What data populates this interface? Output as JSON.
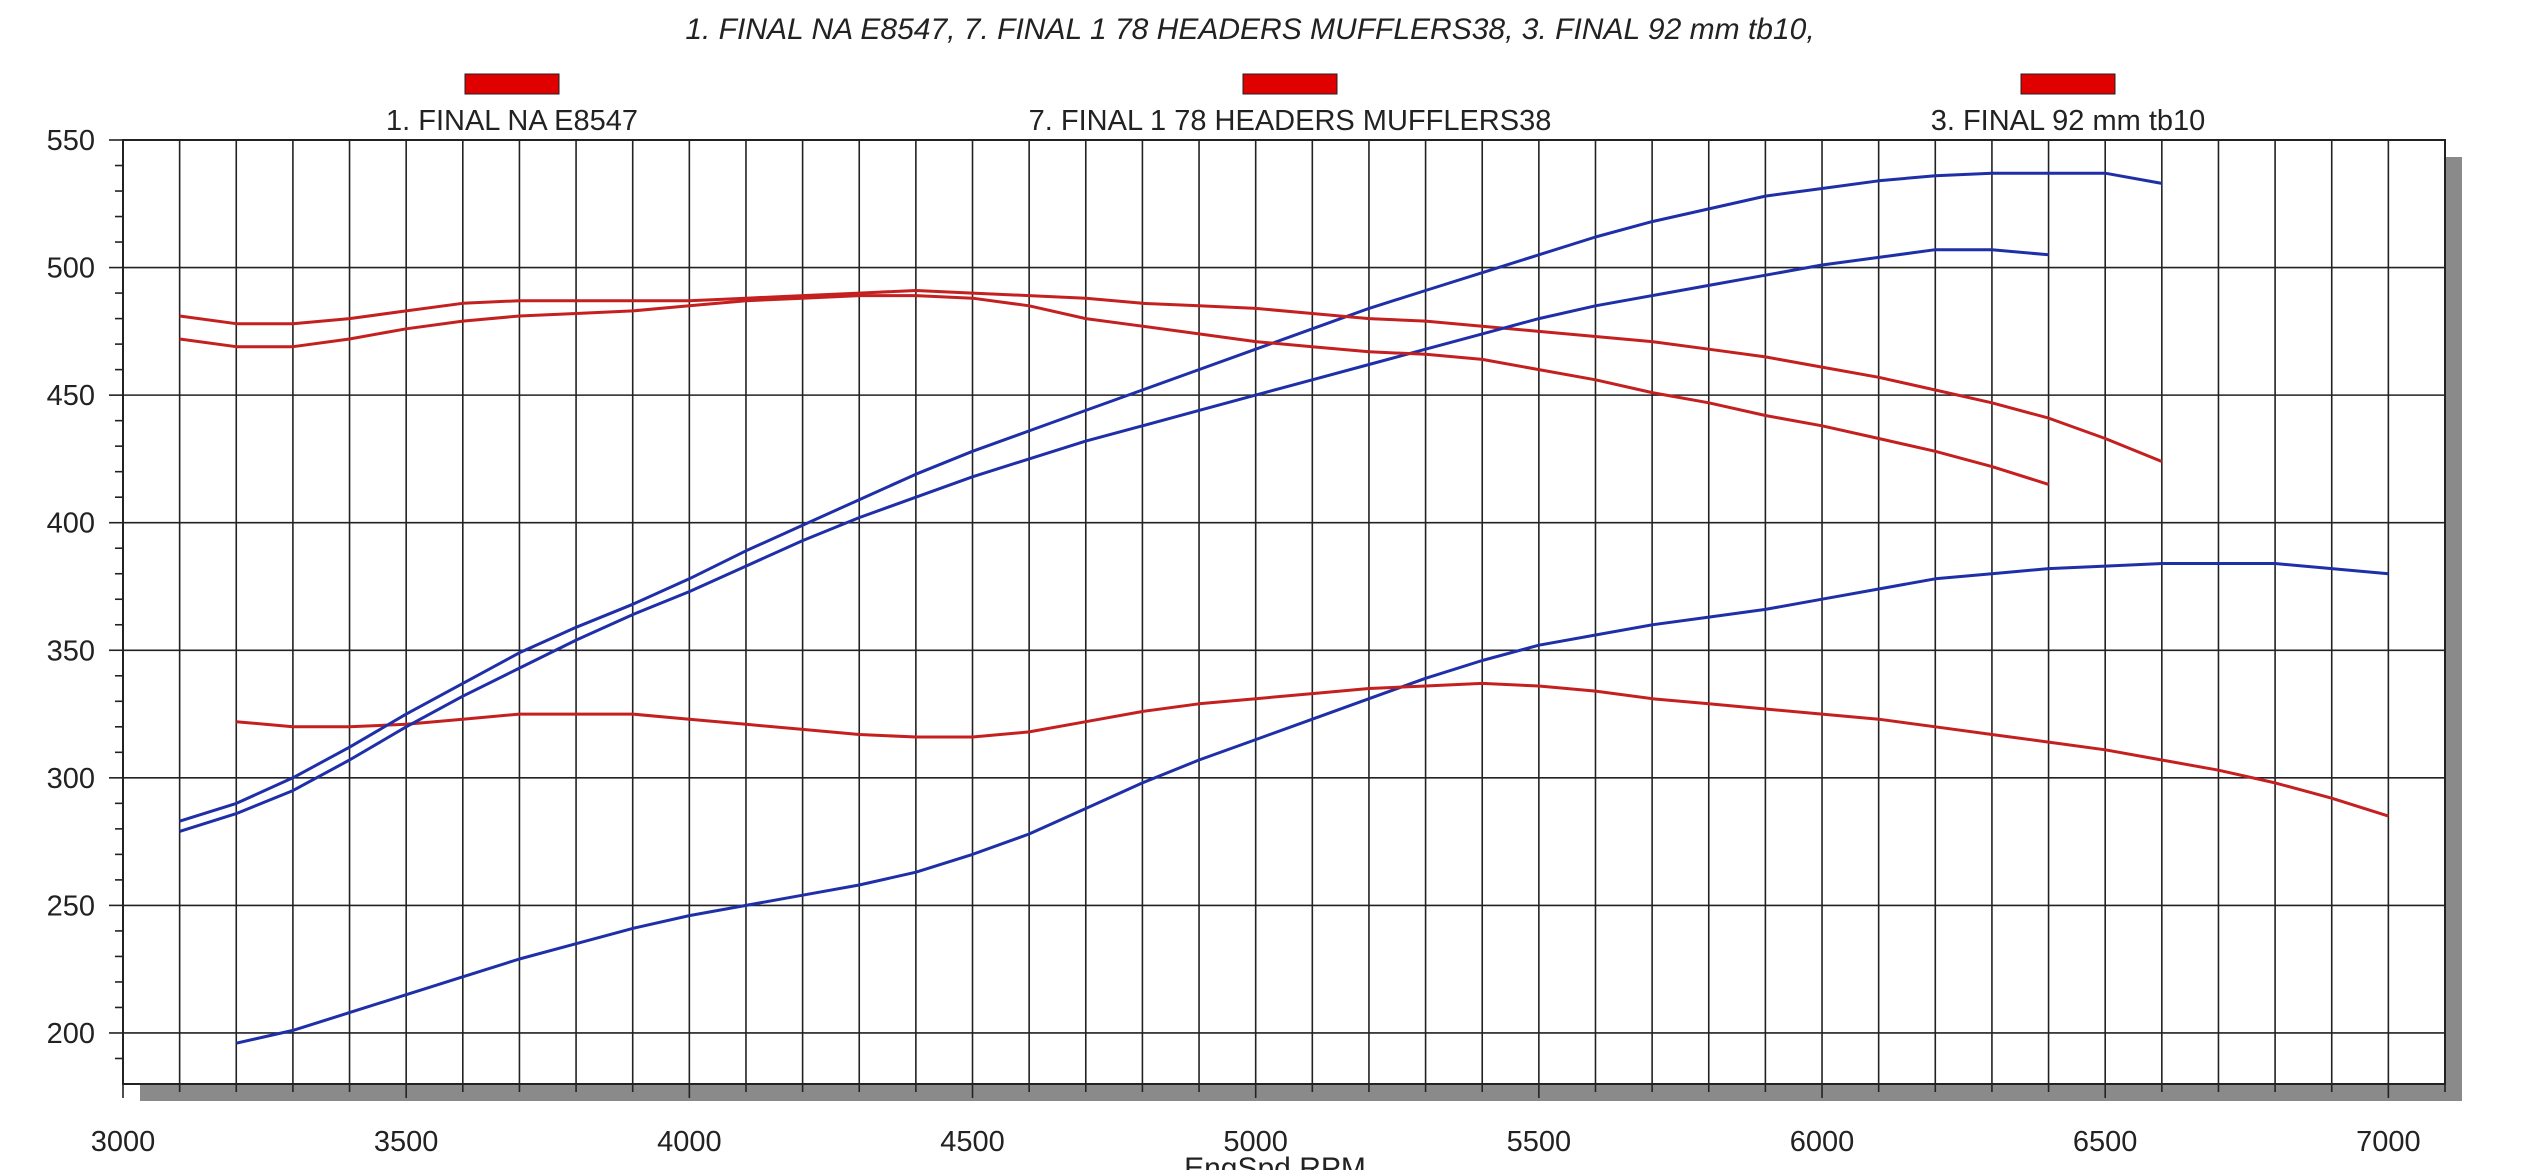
{
  "chart_data": {
    "type": "line",
    "title": "1. FINAL NA E8547, 7. FINAL 1 78 HEADERS MUFFLERS38, 3. FINAL 92 mm tb10,",
    "xlabel": "EngSpd RPM",
    "ylabel": "",
    "xlim": [
      3000,
      7100
    ],
    "ylim": [
      180,
      550
    ],
    "x_ticks": [
      3000,
      3500,
      4000,
      4500,
      5000,
      5500,
      6000,
      6500,
      7000
    ],
    "y_ticks": [
      200,
      250,
      300,
      350,
      400,
      450,
      500,
      550
    ],
    "grid": true,
    "legend_position": "top",
    "legend": [
      {
        "label": "1. FINAL NA E8547",
        "color": "#e00000"
      },
      {
        "label": "7. FINAL 1 78 HEADERS MUFFLERS38",
        "color": "#e00000"
      },
      {
        "label": "3. FINAL 92 mm tb10",
        "color": "#e00000"
      }
    ],
    "series": [
      {
        "color": "#1f2fa8",
        "x": [
          3200,
          3300,
          3400,
          3500,
          3600,
          3700,
          3800,
          3900,
          4000,
          4100,
          4200,
          4300,
          4400,
          4500,
          4600,
          4700,
          4800,
          4900,
          5000,
          5100,
          5200,
          5300,
          5400,
          5500,
          5600,
          5700,
          5800,
          5900,
          6000,
          6100,
          6200,
          6300,
          6400,
          6500,
          6600,
          6700,
          6800,
          6900,
          7000
        ],
        "y": [
          196,
          201,
          208,
          215,
          222,
          229,
          235,
          241,
          246,
          250,
          254,
          258,
          263,
          270,
          278,
          288,
          298,
          307,
          315,
          323,
          331,
          339,
          346,
          352,
          356,
          360,
          363,
          366,
          370,
          374,
          378,
          380,
          382,
          383,
          384,
          384,
          384,
          382,
          380
        ]
      },
      {
        "color": "#c42020",
        "x": [
          3200,
          3300,
          3400,
          3500,
          3600,
          3700,
          3800,
          3900,
          4000,
          4100,
          4200,
          4300,
          4400,
          4500,
          4600,
          4700,
          4800,
          4900,
          5000,
          5100,
          5200,
          5300,
          5400,
          5500,
          5600,
          5700,
          5800,
          5900,
          6000,
          6100,
          6200,
          6300,
          6400,
          6500,
          6600,
          6700,
          6800,
          6900,
          7000
        ],
        "y": [
          322,
          320,
          320,
          321,
          323,
          325,
          325,
          325,
          323,
          321,
          319,
          317,
          316,
          316,
          318,
          322,
          326,
          329,
          331,
          333,
          335,
          336,
          337,
          336,
          334,
          331,
          329,
          327,
          325,
          323,
          320,
          317,
          314,
          311,
          307,
          303,
          298,
          292,
          285
        ]
      },
      {
        "color": "#1f2fa8",
        "x": [
          3100,
          3200,
          3300,
          3400,
          3500,
          3600,
          3700,
          3800,
          3900,
          4000,
          4100,
          4200,
          4300,
          4400,
          4500,
          4600,
          4700,
          4800,
          4900,
          5000,
          5100,
          5200,
          5300,
          5400,
          5500,
          5600,
          5700,
          5800,
          5900,
          6000,
          6100,
          6200,
          6300,
          6400,
          6500,
          6600
        ],
        "y": [
          283,
          290,
          300,
          312,
          325,
          337,
          349,
          359,
          368,
          378,
          389,
          399,
          409,
          419,
          428,
          436,
          444,
          452,
          460,
          468,
          476,
          484,
          491,
          498,
          505,
          512,
          518,
          523,
          528,
          531,
          534,
          536,
          537,
          537,
          537,
          533
        ]
      },
      {
        "color": "#c42020",
        "x": [
          3100,
          3200,
          3300,
          3400,
          3500,
          3600,
          3700,
          3800,
          3900,
          4000,
          4100,
          4200,
          4300,
          4400,
          4500,
          4600,
          4700,
          4800,
          4900,
          5000,
          5100,
          5200,
          5300,
          5400,
          5500,
          5600,
          5700,
          5800,
          5900,
          6000,
          6100,
          6200,
          6300,
          6400,
          6500,
          6600
        ],
        "y": [
          481,
          478,
          478,
          480,
          483,
          486,
          487,
          487,
          487,
          487,
          488,
          489,
          490,
          491,
          490,
          489,
          488,
          486,
          485,
          484,
          482,
          480,
          479,
          477,
          475,
          473,
          471,
          468,
          465,
          461,
          457,
          452,
          447,
          441,
          433,
          424
        ]
      },
      {
        "color": "#1f2fa8",
        "x": [
          3100,
          3200,
          3300,
          3400,
          3500,
          3600,
          3700,
          3800,
          3900,
          4000,
          4100,
          4200,
          4300,
          4400,
          4500,
          4600,
          4700,
          4800,
          4900,
          5000,
          5100,
          5200,
          5300,
          5400,
          5500,
          5600,
          5700,
          5800,
          5900,
          6000,
          6100,
          6200,
          6300,
          6400
        ],
        "y": [
          279,
          286,
          295,
          307,
          320,
          332,
          343,
          354,
          364,
          373,
          383,
          393,
          402,
          410,
          418,
          425,
          432,
          438,
          444,
          450,
          456,
          462,
          468,
          474,
          480,
          485,
          489,
          493,
          497,
          501,
          504,
          507,
          507,
          505
        ]
      },
      {
        "color": "#c42020",
        "x": [
          3100,
          3200,
          3300,
          3400,
          3500,
          3600,
          3700,
          3800,
          3900,
          4000,
          4100,
          4200,
          4300,
          4400,
          4500,
          4600,
          4700,
          4800,
          4900,
          5000,
          5100,
          5200,
          5300,
          5400,
          5500,
          5600,
          5700,
          5800,
          5900,
          6000,
          6100,
          6200,
          6300,
          6400
        ],
        "y": [
          472,
          469,
          469,
          472,
          476,
          479,
          481,
          482,
          483,
          485,
          487,
          488,
          489,
          489,
          488,
          485,
          480,
          477,
          474,
          471,
          469,
          467,
          466,
          464,
          460,
          456,
          451,
          447,
          442,
          438,
          433,
          428,
          422,
          415
        ]
      }
    ]
  }
}
